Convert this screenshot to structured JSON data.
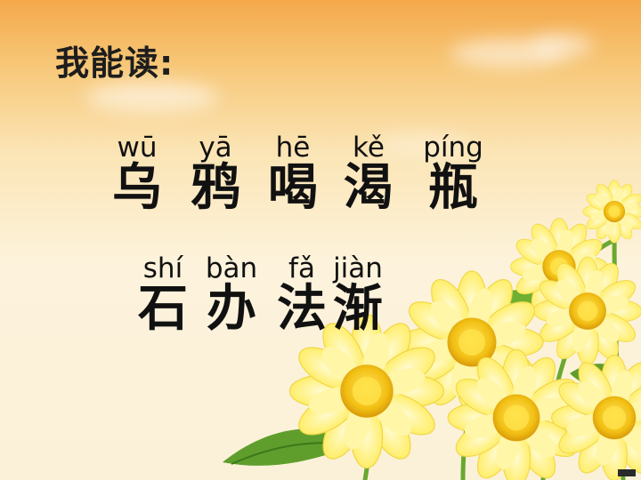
{
  "slide": {
    "title": "我能读:",
    "rows": [
      {
        "items": [
          {
            "pinyin": "wū",
            "hanzi": "乌"
          },
          {
            "pinyin": "yā",
            "hanzi": "鸦"
          },
          {
            "pinyin": "hē",
            "hanzi": "喝"
          },
          {
            "pinyin": "kě",
            "hanzi": "渴"
          },
          {
            "pinyin": "píng",
            "hanzi": "瓶"
          }
        ]
      },
      {
        "items": [
          {
            "pinyin": "shí",
            "hanzi": "石"
          },
          {
            "pinyin": "bàn",
            "hanzi": "办"
          },
          {
            "pinyin": "fǎ",
            "hanzi": "法"
          },
          {
            "pinyin": "jiàn",
            "hanzi": "渐"
          }
        ]
      }
    ]
  },
  "colors": {
    "sky_top": "#f4a84a",
    "sky_bottom": "#fdf3dc",
    "text": "#111111",
    "petal": "#fff07a",
    "flower_center": "#f0c010",
    "leaf": "#6aa830"
  },
  "decorations": [
    "sunflower-bouquet",
    "clouds"
  ]
}
